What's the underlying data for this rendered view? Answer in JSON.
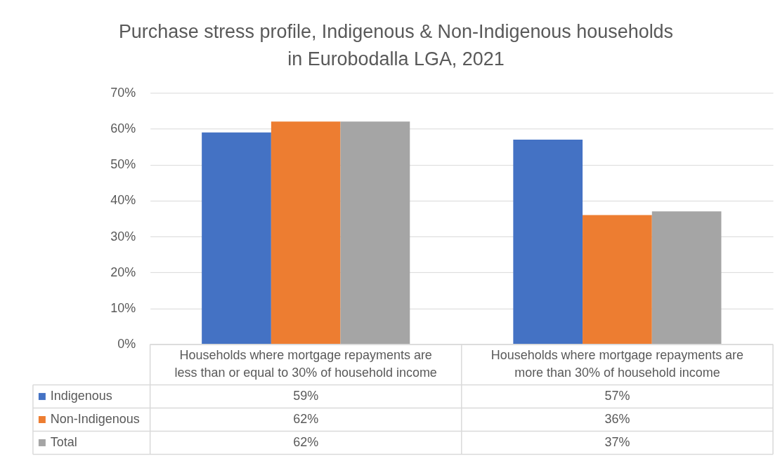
{
  "chart_data": {
    "type": "bar",
    "title": "Purchase stress profile, Indigenous & Non-Indigenous households in Eurobodalla LGA, 2021",
    "categories": [
      "Households where mortgage repayments are less than or equal to 30% of household income",
      "Households where mortgage repayments are more than 30% of household income"
    ],
    "series": [
      {
        "name": "Indigenous",
        "color": "#4472c4",
        "values": [
          59,
          57
        ],
        "value_labels": [
          "59%",
          "57%"
        ]
      },
      {
        "name": "Non-Indigenous",
        "color": "#ed7d31",
        "values": [
          62,
          36
        ],
        "value_labels": [
          "62%",
          "36%"
        ]
      },
      {
        "name": "Total",
        "color": "#a5a5a5",
        "values": [
          62,
          37
        ],
        "value_labels": [
          "62%",
          "37%"
        ]
      }
    ],
    "ylim": [
      0,
      70
    ],
    "yticks": [
      {
        "value": 0,
        "label": "0%"
      },
      {
        "value": 10,
        "label": "10%"
      },
      {
        "value": 20,
        "label": "20%"
      },
      {
        "value": 30,
        "label": "30%"
      },
      {
        "value": 40,
        "label": "40%"
      },
      {
        "value": 50,
        "label": "50%"
      },
      {
        "value": 60,
        "label": "60%"
      },
      {
        "value": 70,
        "label": "70%"
      }
    ],
    "grid": "y",
    "legend": "bottom"
  }
}
